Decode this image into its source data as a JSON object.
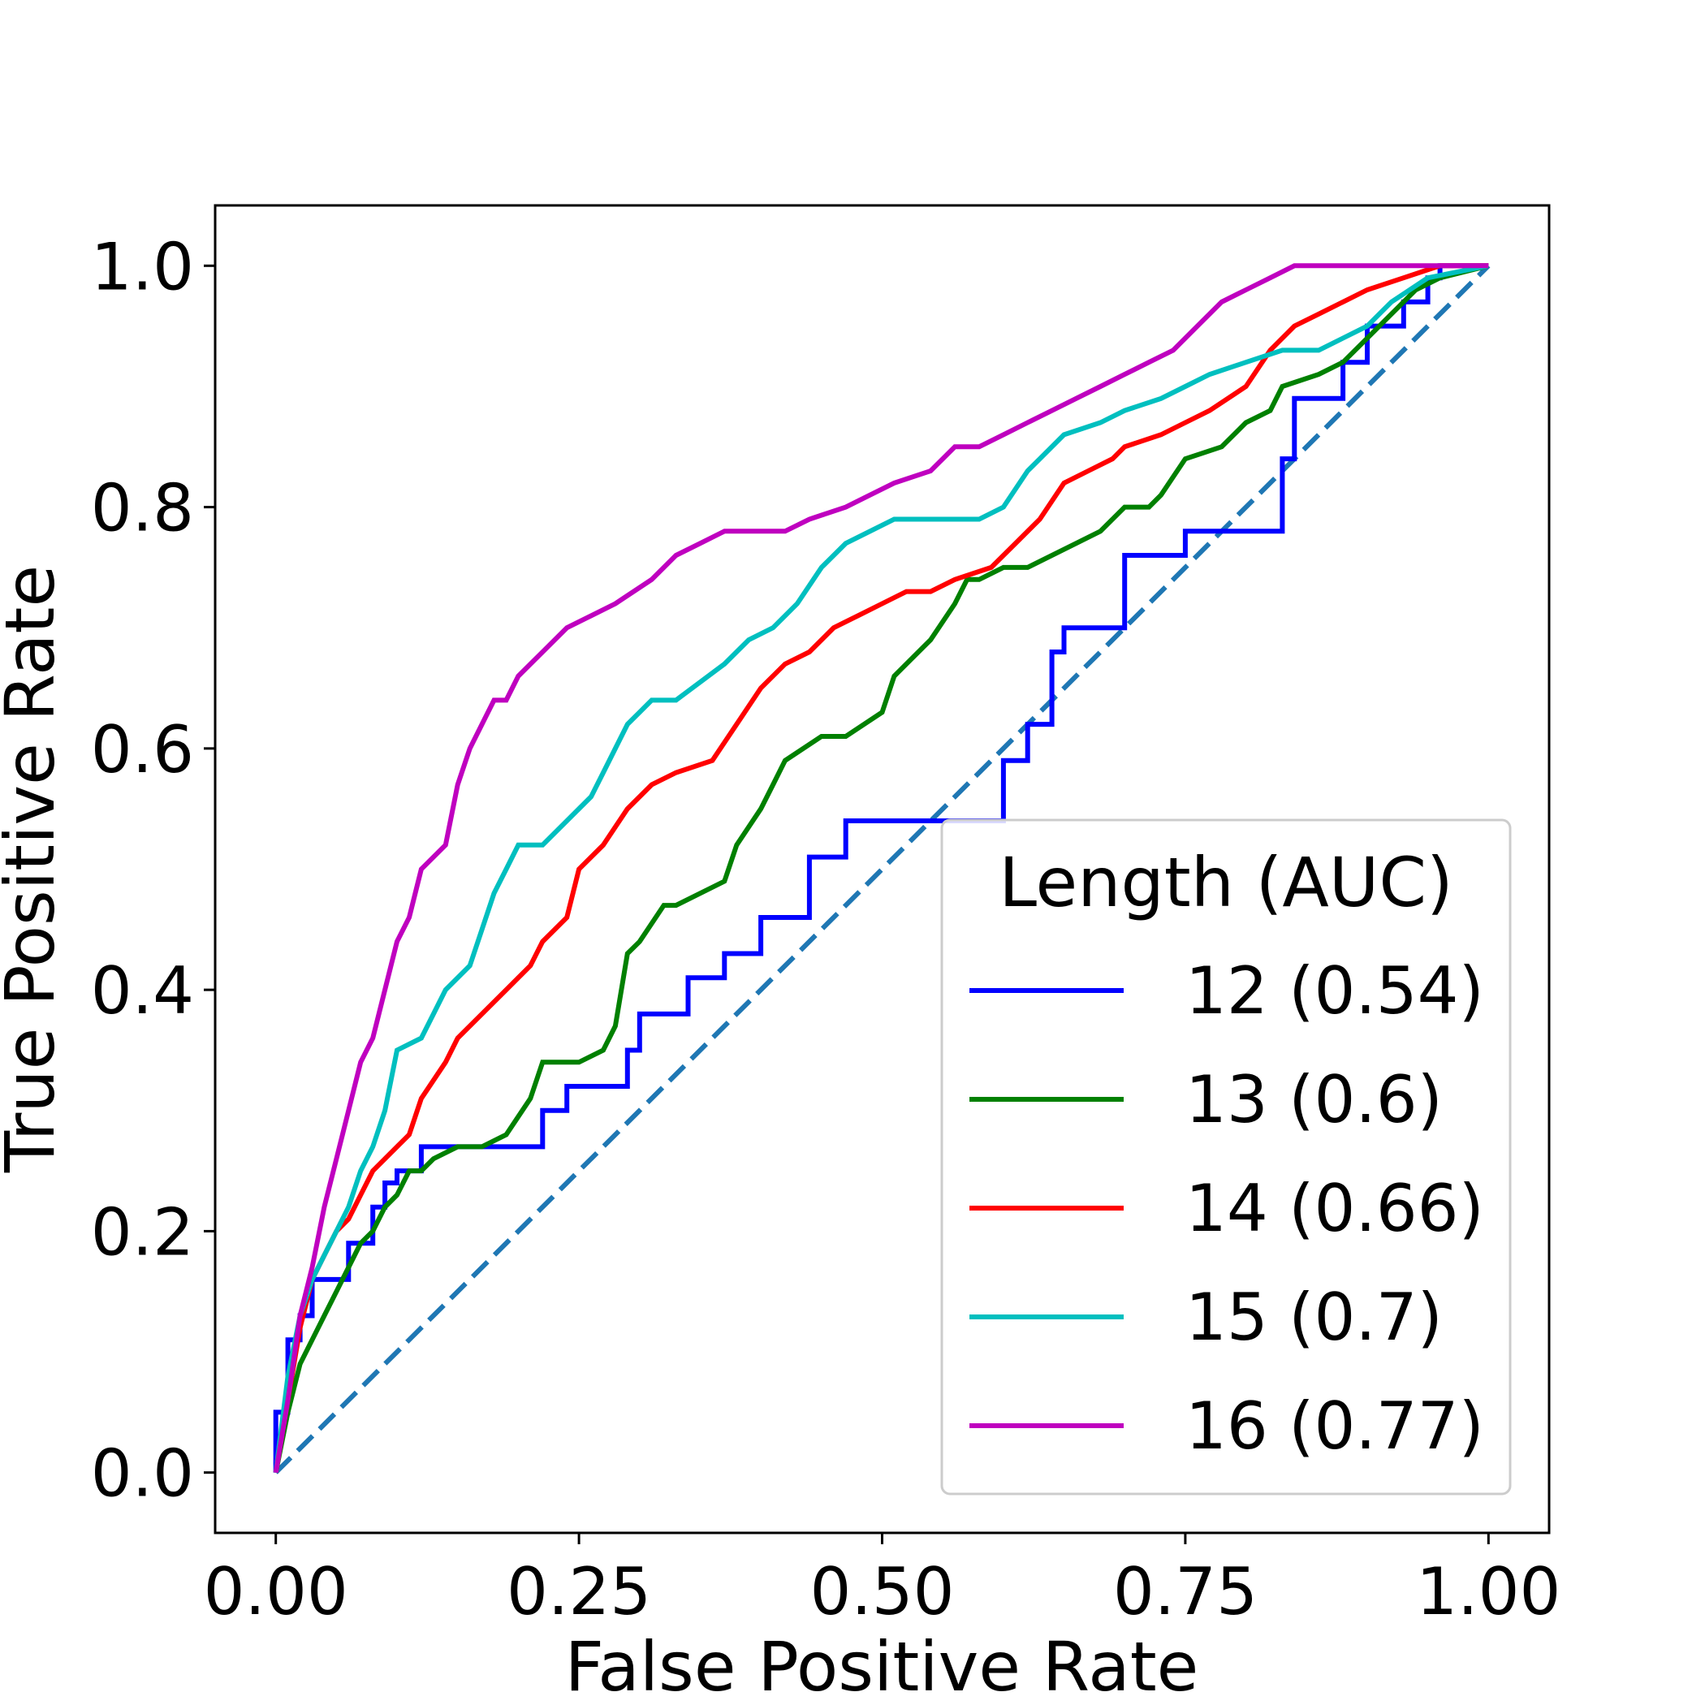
{
  "chart_data": {
    "type": "line",
    "title": "",
    "xlabel": "False Positive Rate",
    "ylabel": "True Positive Rate",
    "xlim": [
      -0.05,
      1.05
    ],
    "ylim": [
      -0.05,
      1.05
    ],
    "x_ticks": [
      0.0,
      0.25,
      0.5,
      0.75,
      1.0
    ],
    "x_tick_labels": [
      "0.00",
      "0.25",
      "0.50",
      "0.75",
      "1.00"
    ],
    "y_ticks": [
      0.0,
      0.2,
      0.4,
      0.6,
      0.8,
      1.0
    ],
    "y_tick_labels": [
      "0.0",
      "0.2",
      "0.4",
      "0.6",
      "0.8",
      "1.0"
    ],
    "grid": false,
    "legend": {
      "title": "Length (AUC)",
      "placement": "lower-right"
    },
    "reference_line": {
      "x": [
        0,
        1
      ],
      "y": [
        0,
        1
      ],
      "color": "#1f77b4",
      "style": "dashed"
    },
    "series": [
      {
        "name": "12 (0.54)",
        "color": "#0000ff",
        "x": [
          0,
          0,
          0.01,
          0.01,
          0.02,
          0.02,
          0.03,
          0.03,
          0.06,
          0.06,
          0.08,
          0.08,
          0.09,
          0.09,
          0.1,
          0.1,
          0.12,
          0.12,
          0.14,
          0.14,
          0.22,
          0.22,
          0.24,
          0.24,
          0.29,
          0.29,
          0.3,
          0.3,
          0.34,
          0.34,
          0.37,
          0.37,
          0.4,
          0.4,
          0.44,
          0.44,
          0.47,
          0.47,
          0.6,
          0.6,
          0.62,
          0.62,
          0.64,
          0.64,
          0.65,
          0.65,
          0.66,
          0.66,
          0.7,
          0.7,
          0.75,
          0.75,
          0.83,
          0.83,
          0.84,
          0.84,
          0.85,
          0.85,
          0.88,
          0.88,
          0.9,
          0.9,
          0.93,
          0.93,
          0.95,
          0.95,
          0.96,
          0.96,
          1.0
        ],
        "y": [
          0,
          0.05,
          0.05,
          0.11,
          0.11,
          0.13,
          0.13,
          0.16,
          0.16,
          0.19,
          0.19,
          0.22,
          0.22,
          0.24,
          0.24,
          0.25,
          0.25,
          0.27,
          0.27,
          0.27,
          0.27,
          0.3,
          0.3,
          0.32,
          0.32,
          0.35,
          0.35,
          0.38,
          0.38,
          0.41,
          0.41,
          0.43,
          0.43,
          0.46,
          0.46,
          0.51,
          0.51,
          0.54,
          0.54,
          0.59,
          0.59,
          0.62,
          0.62,
          0.68,
          0.68,
          0.7,
          0.7,
          0.7,
          0.7,
          0.76,
          0.76,
          0.78,
          0.78,
          0.84,
          0.84,
          0.89,
          0.89,
          0.89,
          0.89,
          0.92,
          0.92,
          0.95,
          0.95,
          0.97,
          0.97,
          0.99,
          0.99,
          1.0,
          1.0
        ]
      },
      {
        "name": "13 (0.6)",
        "color": "#008000",
        "x": [
          0,
          0.01,
          0.02,
          0.03,
          0.04,
          0.05,
          0.06,
          0.07,
          0.08,
          0.09,
          0.1,
          0.11,
          0.12,
          0.13,
          0.15,
          0.17,
          0.19,
          0.21,
          0.22,
          0.25,
          0.27,
          0.28,
          0.29,
          0.3,
          0.32,
          0.33,
          0.37,
          0.38,
          0.4,
          0.41,
          0.42,
          0.45,
          0.47,
          0.5,
          0.51,
          0.52,
          0.54,
          0.56,
          0.57,
          0.58,
          0.6,
          0.62,
          0.66,
          0.68,
          0.7,
          0.72,
          0.73,
          0.75,
          0.78,
          0.79,
          0.8,
          0.82,
          0.83,
          0.86,
          0.88,
          0.9,
          0.92,
          0.94,
          0.96,
          1.0
        ],
        "y": [
          0,
          0.05,
          0.09,
          0.11,
          0.13,
          0.15,
          0.17,
          0.19,
          0.2,
          0.22,
          0.23,
          0.25,
          0.25,
          0.26,
          0.27,
          0.27,
          0.28,
          0.31,
          0.34,
          0.34,
          0.35,
          0.37,
          0.43,
          0.44,
          0.47,
          0.47,
          0.49,
          0.52,
          0.55,
          0.57,
          0.59,
          0.61,
          0.61,
          0.63,
          0.66,
          0.67,
          0.69,
          0.72,
          0.74,
          0.74,
          0.75,
          0.75,
          0.77,
          0.78,
          0.8,
          0.8,
          0.81,
          0.84,
          0.85,
          0.86,
          0.87,
          0.88,
          0.9,
          0.91,
          0.92,
          0.94,
          0.96,
          0.98,
          0.99,
          1.0
        ]
      },
      {
        "name": "14 (0.66)",
        "color": "#ff0000",
        "x": [
          0,
          0.01,
          0.02,
          0.03,
          0.04,
          0.05,
          0.06,
          0.07,
          0.08,
          0.1,
          0.11,
          0.12,
          0.14,
          0.15,
          0.17,
          0.19,
          0.21,
          0.22,
          0.24,
          0.25,
          0.27,
          0.29,
          0.31,
          0.33,
          0.36,
          0.38,
          0.4,
          0.42,
          0.44,
          0.46,
          0.48,
          0.5,
          0.52,
          0.54,
          0.56,
          0.59,
          0.61,
          0.63,
          0.65,
          0.67,
          0.69,
          0.7,
          0.73,
          0.75,
          0.77,
          0.8,
          0.82,
          0.84,
          0.86,
          0.88,
          0.9,
          0.93,
          0.96,
          1.0
        ],
        "y": [
          0,
          0.06,
          0.12,
          0.16,
          0.18,
          0.2,
          0.21,
          0.23,
          0.25,
          0.27,
          0.28,
          0.31,
          0.34,
          0.36,
          0.38,
          0.4,
          0.42,
          0.44,
          0.46,
          0.5,
          0.52,
          0.55,
          0.57,
          0.58,
          0.59,
          0.62,
          0.65,
          0.67,
          0.68,
          0.7,
          0.71,
          0.72,
          0.73,
          0.73,
          0.74,
          0.75,
          0.77,
          0.79,
          0.82,
          0.83,
          0.84,
          0.85,
          0.86,
          0.87,
          0.88,
          0.9,
          0.93,
          0.95,
          0.96,
          0.97,
          0.98,
          0.99,
          1.0,
          1.0
        ]
      },
      {
        "name": "15 (0.7)",
        "color": "#00bfbf",
        "x": [
          0,
          0.01,
          0.02,
          0.03,
          0.04,
          0.05,
          0.06,
          0.07,
          0.08,
          0.09,
          0.1,
          0.12,
          0.13,
          0.14,
          0.16,
          0.17,
          0.18,
          0.19,
          0.2,
          0.22,
          0.24,
          0.26,
          0.27,
          0.28,
          0.29,
          0.3,
          0.31,
          0.33,
          0.37,
          0.39,
          0.41,
          0.43,
          0.45,
          0.47,
          0.49,
          0.51,
          0.53,
          0.55,
          0.58,
          0.6,
          0.62,
          0.63,
          0.65,
          0.68,
          0.7,
          0.73,
          0.75,
          0.77,
          0.8,
          0.83,
          0.86,
          0.88,
          0.9,
          0.92,
          0.95,
          1.0
        ],
        "y": [
          0,
          0.08,
          0.13,
          0.16,
          0.18,
          0.2,
          0.22,
          0.25,
          0.27,
          0.3,
          0.35,
          0.36,
          0.38,
          0.4,
          0.42,
          0.45,
          0.48,
          0.5,
          0.52,
          0.52,
          0.54,
          0.56,
          0.58,
          0.6,
          0.62,
          0.63,
          0.64,
          0.64,
          0.67,
          0.69,
          0.7,
          0.72,
          0.75,
          0.77,
          0.78,
          0.79,
          0.79,
          0.79,
          0.79,
          0.8,
          0.83,
          0.84,
          0.86,
          0.87,
          0.88,
          0.89,
          0.9,
          0.91,
          0.92,
          0.93,
          0.93,
          0.94,
          0.95,
          0.97,
          0.99,
          1.0
        ]
      },
      {
        "name": "16 (0.77)",
        "color": "#bf00bf",
        "x": [
          0,
          0.01,
          0.02,
          0.03,
          0.04,
          0.05,
          0.06,
          0.07,
          0.08,
          0.09,
          0.1,
          0.11,
          0.12,
          0.14,
          0.15,
          0.16,
          0.17,
          0.18,
          0.19,
          0.2,
          0.22,
          0.24,
          0.26,
          0.28,
          0.31,
          0.33,
          0.35,
          0.37,
          0.4,
          0.42,
          0.44,
          0.47,
          0.49,
          0.51,
          0.54,
          0.56,
          0.58,
          0.6,
          0.62,
          0.64,
          0.66,
          0.68,
          0.7,
          0.72,
          0.74,
          0.76,
          0.78,
          0.8,
          0.82,
          0.84,
          0.86,
          0.88,
          0.9,
          0.92,
          0.95,
          1.0
        ],
        "y": [
          0,
          0.06,
          0.13,
          0.17,
          0.22,
          0.26,
          0.3,
          0.34,
          0.36,
          0.4,
          0.44,
          0.46,
          0.5,
          0.52,
          0.57,
          0.6,
          0.62,
          0.64,
          0.64,
          0.66,
          0.68,
          0.7,
          0.71,
          0.72,
          0.74,
          0.76,
          0.77,
          0.78,
          0.78,
          0.78,
          0.79,
          0.8,
          0.81,
          0.82,
          0.83,
          0.85,
          0.85,
          0.86,
          0.87,
          0.88,
          0.89,
          0.9,
          0.91,
          0.92,
          0.93,
          0.95,
          0.97,
          0.98,
          0.99,
          1.0,
          1.0,
          1.0,
          1.0,
          1.0,
          1.0,
          1.0
        ]
      }
    ]
  }
}
